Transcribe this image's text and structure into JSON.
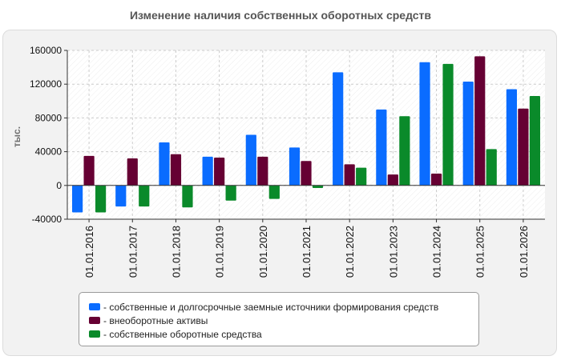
{
  "chart_data": {
    "type": "bar",
    "title": "Изменение наличия собственных оборотных средств",
    "ylabel": "тыс.",
    "xlabel": "",
    "ylim": [
      -40000,
      160000
    ],
    "yticks": [
      -40000,
      0,
      40000,
      80000,
      120000,
      160000
    ],
    "ytick_labels": [
      "-40000",
      "0",
      "40000",
      "80000",
      "120000",
      "160000"
    ],
    "grid": true,
    "legend_position": "bottom",
    "categories": [
      "01.01.2016",
      "01.01.2017",
      "01.01.2018",
      "01.01.2019",
      "01.01.2020",
      "01.01.2021",
      "01.01.2022",
      "01.01.2023",
      "01.01.2024",
      "01.01.2025",
      "01.01.2026"
    ],
    "series": [
      {
        "name": "- собственные и долгосрочные заемные источники формирования средств",
        "color": "#0a6cff",
        "values": [
          -32000,
          -25000,
          51000,
          34000,
          60000,
          45000,
          134000,
          90000,
          146000,
          123000,
          114000
        ]
      },
      {
        "name": "- внеоборотные активы",
        "color": "#660033",
        "values": [
          35000,
          32000,
          37000,
          33000,
          34000,
          29000,
          25000,
          13000,
          14000,
          153000,
          91000
        ]
      },
      {
        "name": "- собственные оборотные средства",
        "color": "#0a8a2a",
        "values": [
          -32000,
          -25000,
          -26000,
          -18000,
          -16000,
          -3000,
          21000,
          82000,
          144000,
          43000,
          106000
        ]
      }
    ]
  }
}
